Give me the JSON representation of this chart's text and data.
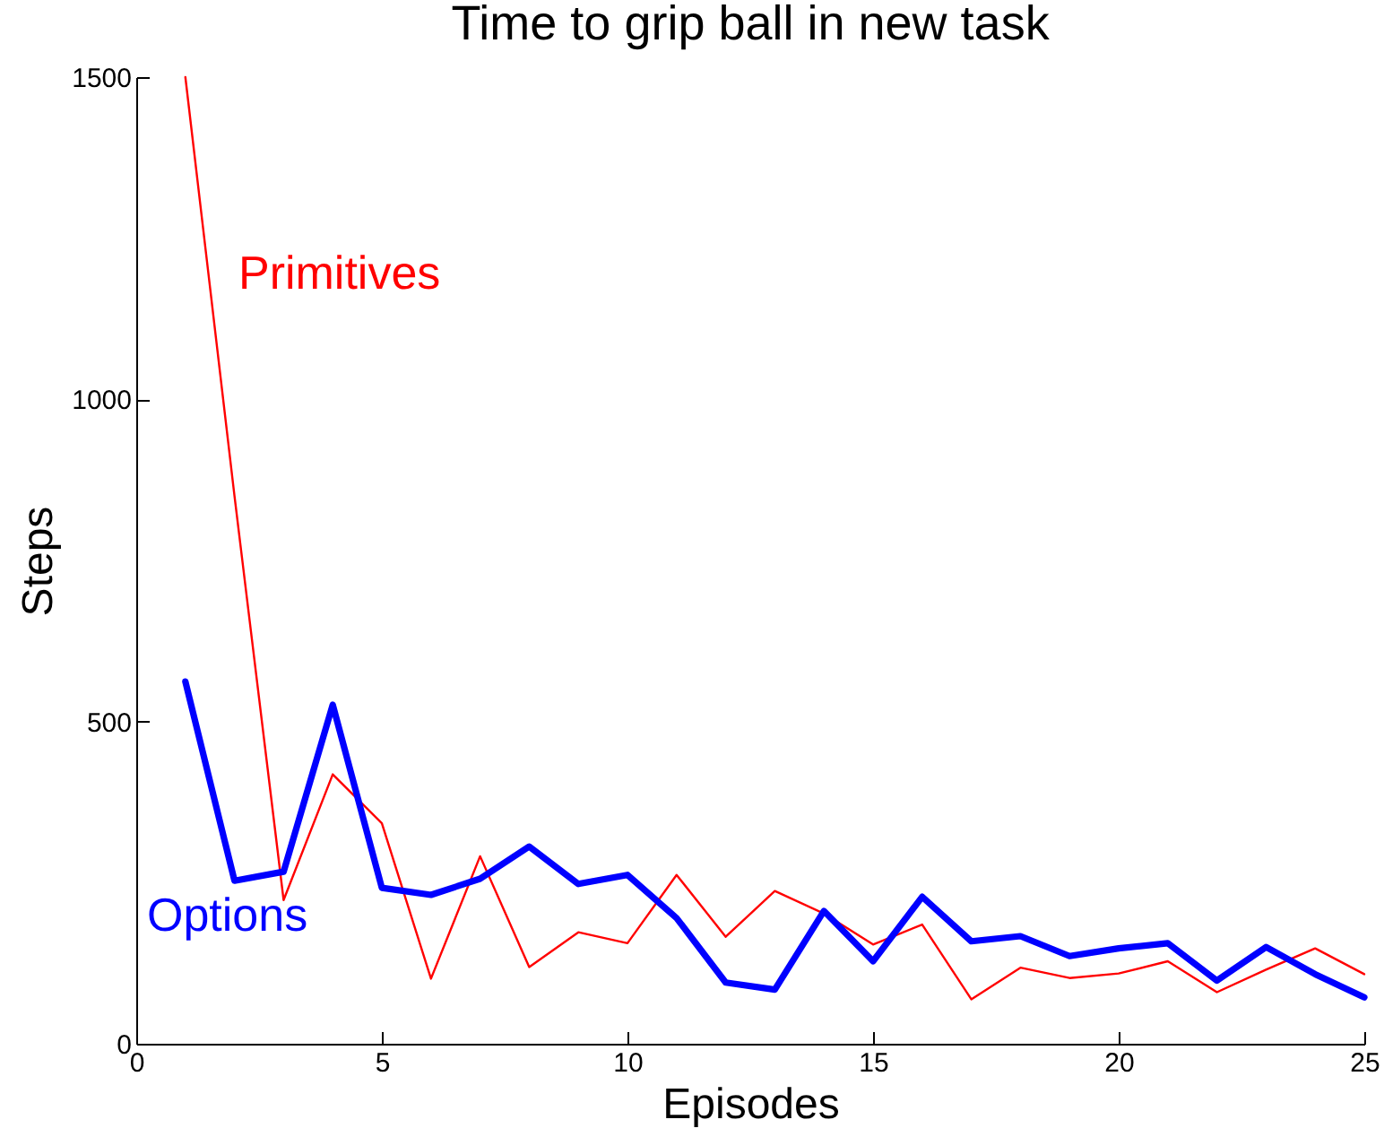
{
  "chart_data": {
    "type": "line",
    "title": "Time to grip ball in new task",
    "xlabel": "Episodes",
    "ylabel": "Steps",
    "x": [
      1,
      2,
      3,
      4,
      5,
      6,
      7,
      8,
      9,
      10,
      11,
      12,
      13,
      14,
      15,
      16,
      17,
      18,
      19,
      20,
      21,
      22,
      23,
      24,
      25
    ],
    "series": [
      {
        "name": "Primitives",
        "color": "#ff0000",
        "values": [
          1500,
          850,
          223,
          418,
          342,
          101,
          291,
          119,
          173,
          156,
          262,
          166,
          237,
          202,
          154,
          185,
          69,
          118,
          102,
          109,
          128,
          80,
          115,
          148,
          108
        ]
      },
      {
        "name": "Options",
        "color": "#0000ff",
        "values": [
          562,
          253,
          267,
          526,
          242,
          231,
          256,
          306,
          248,
          262,
          195,
          95,
          84,
          206,
          128,
          228,
          159,
          167,
          136,
          148,
          156,
          98,
          150,
          108,
          72
        ]
      }
    ],
    "xlim": [
      0,
      25
    ],
    "xticks": [
      0,
      5,
      10,
      15,
      20,
      25
    ],
    "ylim": [
      0,
      1500
    ],
    "yticks": [
      0,
      500,
      1000,
      1500
    ]
  }
}
